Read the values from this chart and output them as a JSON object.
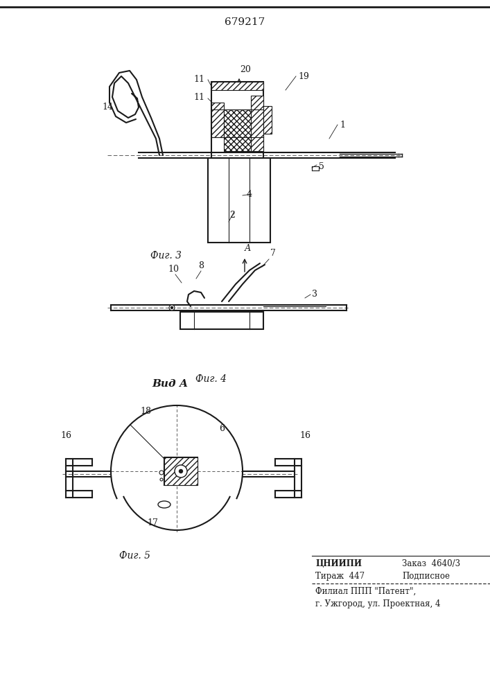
{
  "patent_number": "679217",
  "fig3_label": "Фиг. 3",
  "fig4_label": "Фиг. 4",
  "fig5_label": "Фиг. 5",
  "vid_a_label": "Вид А",
  "footer_line1": "ЦНИИПИ",
  "footer_line2": "Тираж  447",
  "footer_line3": "Заказ  4640/3",
  "footer_line4": "Подписное",
  "footer_line5": "Филиал ППП \"Патент\",",
  "footer_line6": "г. Ужгород, ул. Проектная, 4",
  "bg_color": "#ffffff",
  "line_color": "#1a1a1a"
}
